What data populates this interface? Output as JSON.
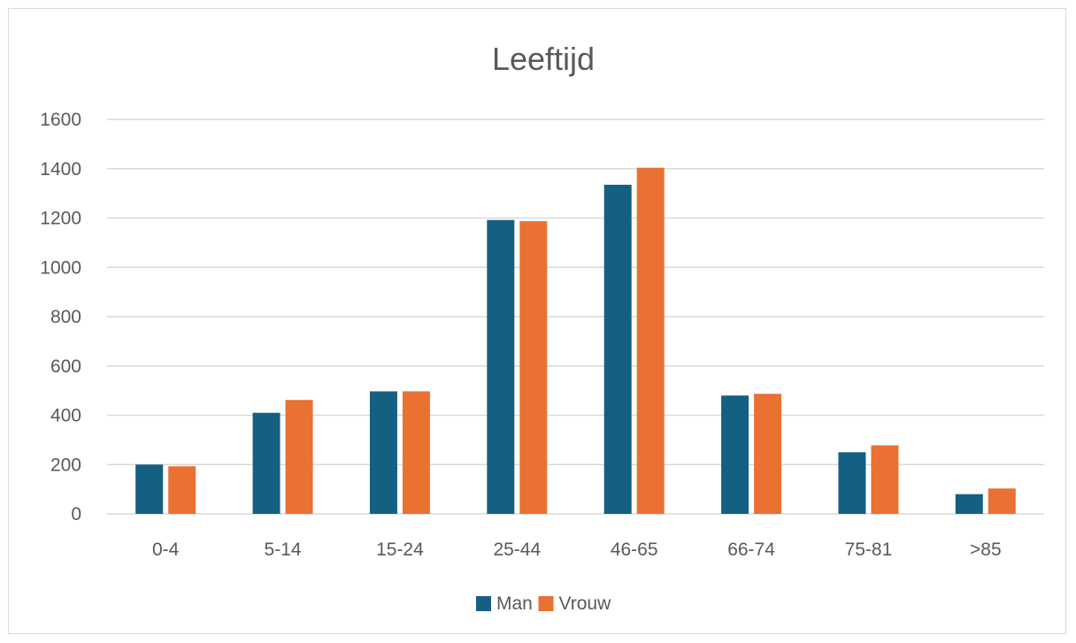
{
  "chart_data": {
    "type": "bar",
    "title": "Leeftijd",
    "categories": [
      "0-4",
      "5-14",
      "15-24",
      "25-44",
      "46-65",
      "66-74",
      "75-81",
      ">85"
    ],
    "series": [
      {
        "name": "Man",
        "color": "#156082",
        "values": [
          200,
          410,
          497,
          1192,
          1335,
          480,
          250,
          80
        ]
      },
      {
        "name": "Vrouw",
        "color": "#E97132",
        "values": [
          193,
          462,
          497,
          1187,
          1404,
          487,
          278,
          103
        ]
      }
    ],
    "ylim": [
      0,
      1600
    ],
    "yticks": [
      0,
      200,
      400,
      600,
      800,
      1000,
      1200,
      1400,
      1600
    ],
    "grid": true,
    "legend": "bottom-center"
  }
}
